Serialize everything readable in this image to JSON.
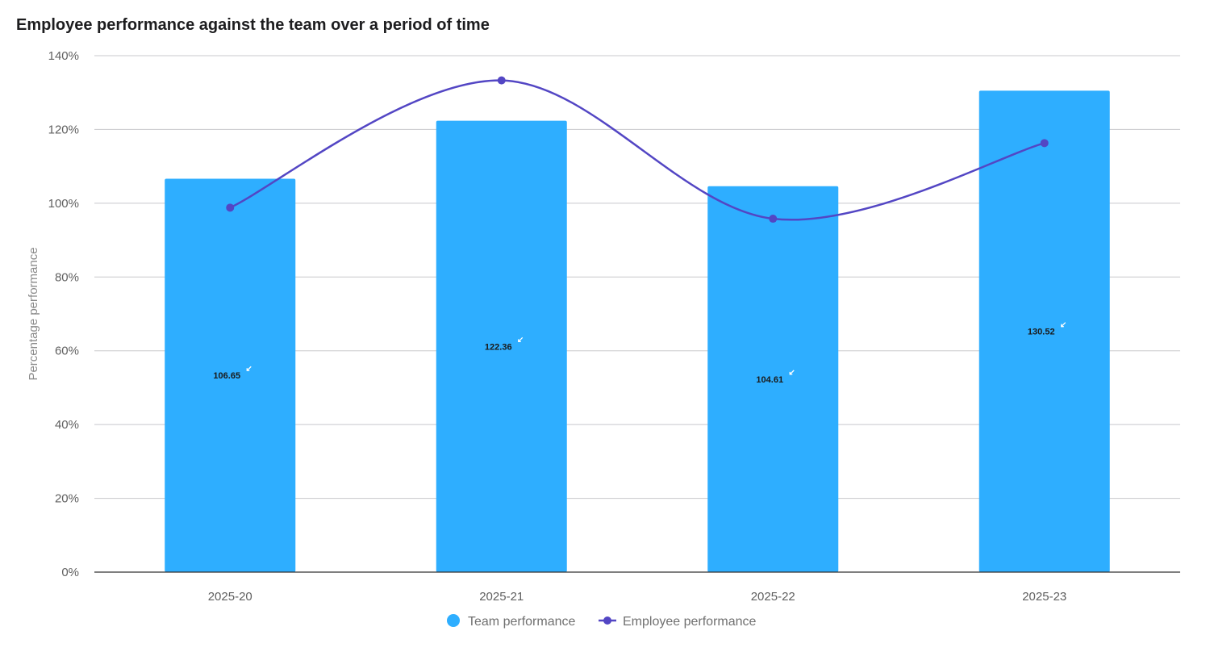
{
  "chart_data": {
    "type": "bar",
    "title": "Employee performance against the team over a period of time",
    "xlabel": "",
    "ylabel": "Percentage performance",
    "categories": [
      "2025-20",
      "2025-21",
      "2025-22",
      "2025-23"
    ],
    "ylim": [
      0,
      140
    ],
    "yticks": [
      0,
      20,
      40,
      60,
      80,
      100,
      120,
      140
    ],
    "ytick_labels": [
      "0%",
      "20%",
      "40%",
      "60%",
      "80%",
      "100%",
      "120%",
      "140%"
    ],
    "grid": true,
    "legend_position": "bottom",
    "series": [
      {
        "name": "Team performance",
        "type": "bar",
        "color": "#2eaeff",
        "values": [
          106.65,
          122.36,
          104.61,
          130.52
        ],
        "data_labels": [
          "106.65",
          "122.36",
          "104.61",
          "130.52"
        ]
      },
      {
        "name": "Employee performance",
        "type": "line",
        "color": "#5346c4",
        "smooth": true,
        "values": [
          98.8,
          133.3,
          95.8,
          116.3
        ]
      }
    ]
  }
}
